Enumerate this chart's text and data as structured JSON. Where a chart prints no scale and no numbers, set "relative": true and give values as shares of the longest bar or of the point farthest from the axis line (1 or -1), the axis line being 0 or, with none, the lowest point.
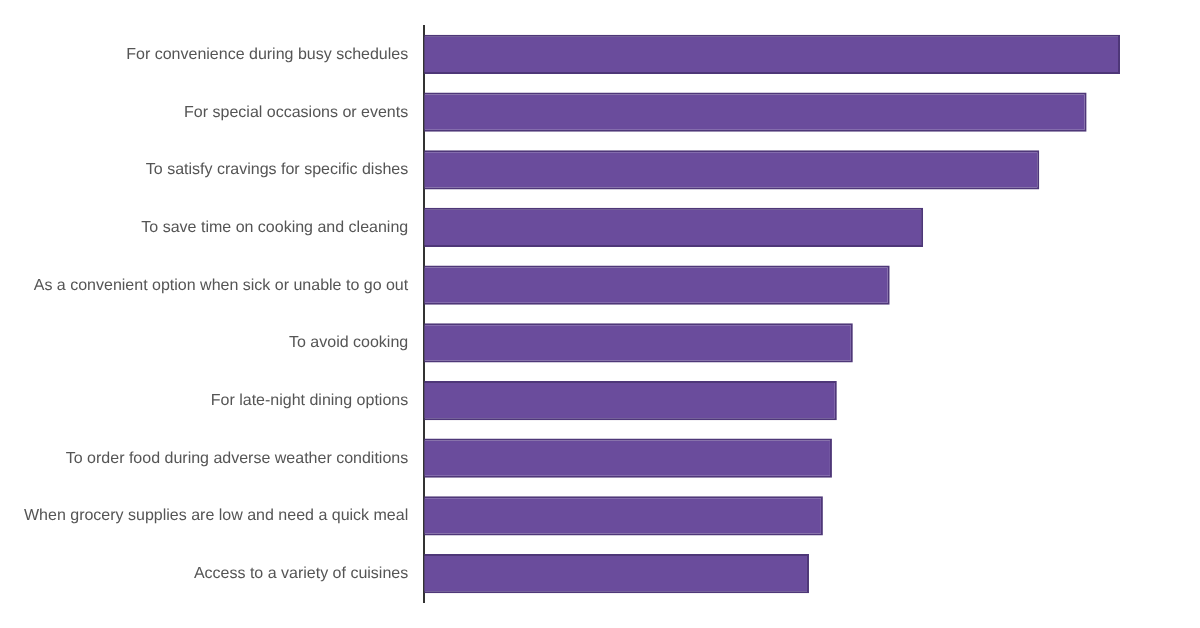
{
  "chart_data": {
    "type": "bar",
    "orientation": "horizontal",
    "relative": true,
    "categories": [
      "For convenience during busy schedules",
      "For special occasions or events",
      "To satisfy cravings for specific dishes",
      "To save time on cooking and cleaning",
      "As a convenient option when sick or unable to go out",
      "To avoid cooking",
      "For late-night dining options",
      "To order food during adverse weather conditions",
      "When grocery supplies are low and need a quick meal",
      "Access to a variety of cuisines"
    ],
    "values": [
      1,
      0.952,
      0.884,
      0.717,
      0.669,
      0.616,
      0.593,
      0.586,
      0.573,
      0.553
    ],
    "color": "#6a4c9c",
    "legend": false
  }
}
